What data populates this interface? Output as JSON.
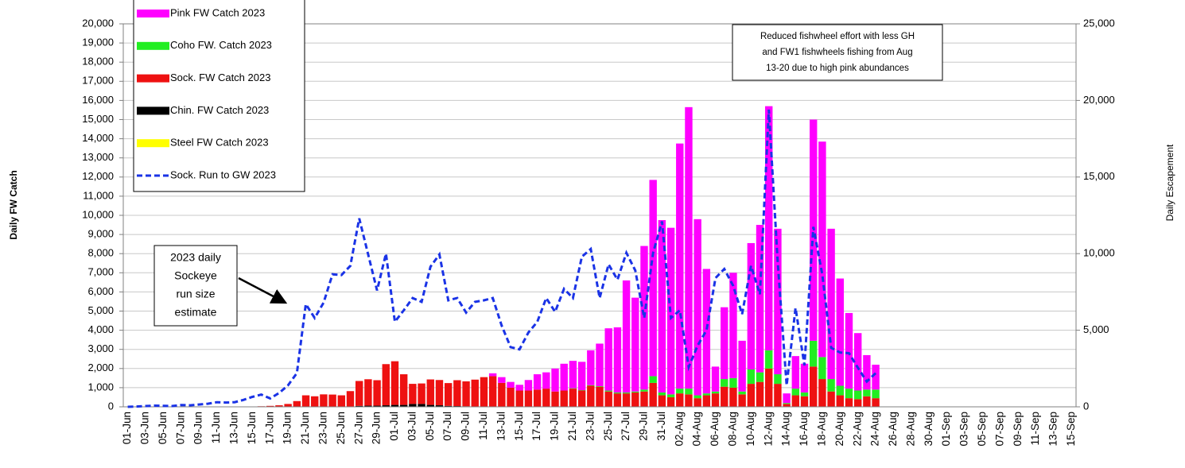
{
  "chart_data": {
    "type": "bar",
    "y_label": "Daily FW Catch",
    "y2_label": "Daily Escapement",
    "annotations": [
      {
        "lines": [
          "Reduced fishwheel effort with less GH",
          "and FW1 fishwheels  fishing from Aug",
          "13-20 due to high pink abundances"
        ]
      },
      {
        "lines": [
          "2023 daily",
          "Sockeye",
          "run size",
          "estimate"
        ]
      }
    ],
    "grid": true,
    "legend": "top-left",
    "ylim": [
      0,
      20000
    ],
    "yticks": [
      0,
      {
        "value": 1000,
        "label": "1,000"
      },
      {
        "value": 2000,
        "label": "2,000"
      },
      {
        "value": 3000,
        "label": "3,000"
      },
      {
        "value": 4000,
        "label": "4,000"
      },
      {
        "value": 5000,
        "label": "5,000"
      },
      {
        "value": 6000,
        "label": "6,000"
      },
      {
        "value": 7000,
        "label": "7,000"
      },
      {
        "value": 8000,
        "label": "8,000"
      },
      {
        "value": 9000,
        "label": "9,000"
      },
      {
        "value": 10000,
        "label": "10,000"
      },
      {
        "value": 11000,
        "label": "11,000"
      },
      {
        "value": 12000,
        "label": "12,000"
      },
      {
        "value": 13000,
        "label": "13,000"
      },
      {
        "value": 14000,
        "label": "14,000"
      },
      {
        "value": 15000,
        "label": "15,000"
      },
      {
        "value": 16000,
        "label": "16,000"
      },
      {
        "value": 17000,
        "label": "17,000"
      },
      {
        "value": 18000,
        "label": "18,000"
      },
      {
        "value": 19000,
        "label": "19,000"
      },
      {
        "value": 20000,
        "label": "20,000"
      }
    ],
    "y2lim": [
      0,
      25000
    ],
    "y2ticks": [
      0,
      {
        "value": 5000,
        "label": "5,000"
      },
      {
        "value": 10000,
        "label": "10,000"
      },
      {
        "value": 15000,
        "label": "15,000"
      },
      {
        "value": 20000,
        "label": "20,000"
      },
      {
        "value": 25000,
        "label": "25,000"
      }
    ],
    "categories": [
      "01-Jun",
      null,
      "03-Jun",
      null,
      "05-Jun",
      null,
      "07-Jun",
      null,
      "09-Jun",
      null,
      "11-Jun",
      null,
      "13-Jun",
      null,
      "15-Jun",
      null,
      "17-Jun",
      null,
      "19-Jun",
      null,
      "21-Jun",
      null,
      "23-Jun",
      null,
      "25-Jun",
      null,
      "27-Jun",
      null,
      "29-Jun",
      null,
      "01-Jul",
      null,
      "03-Jul",
      null,
      "05-Jul",
      null,
      "07-Jul",
      null,
      "09-Jul",
      null,
      "11-Jul",
      null,
      "13-Jul",
      null,
      "15-Jul",
      null,
      "17-Jul",
      null,
      "19-Jul",
      null,
      "21-Jul",
      null,
      "23-Jul",
      null,
      "25-Jul",
      null,
      "27-Jul",
      null,
      "29-Jul",
      null,
      "31-Jul",
      null,
      "02-Aug",
      null,
      "04-Aug",
      null,
      "06-Aug",
      null,
      "08-Aug",
      null,
      "10-Aug",
      null,
      "12-Aug",
      null,
      "14-Aug",
      null,
      "16-Aug",
      null,
      "18-Aug",
      null,
      "20-Aug",
      null,
      "22-Aug",
      null,
      "24-Aug",
      null,
      "26-Aug",
      null,
      "28-Aug",
      null,
      "30-Aug",
      null,
      "01-Sep",
      null,
      "03-Sep",
      null,
      "05-Sep",
      null,
      "07-Sep",
      null,
      "09-Sep",
      null,
      "11-Sep",
      null,
      "13-Sep",
      null,
      "15-Sep"
    ],
    "series": [
      {
        "name": "Pink FW Catch 2023",
        "type": "bar",
        "color": "#ff00ff",
        "values": [
          0,
          0,
          0,
          0,
          0,
          0,
          0,
          0,
          0,
          0,
          0,
          0,
          0,
          0,
          0,
          0,
          0,
          0,
          0,
          0,
          0,
          0,
          0,
          0,
          0,
          0,
          0,
          0,
          0,
          0,
          0,
          0,
          0,
          0,
          0,
          0,
          0,
          0,
          0,
          0,
          0,
          150,
          300,
          300,
          300,
          550,
          800,
          850,
          1200,
          1400,
          1430,
          1480,
          1820,
          2220,
          3250,
          3400,
          5850,
          4900,
          7500,
          10250,
          9000,
          8700,
          12800,
          14700,
          9200,
          6500,
          1300,
          3750,
          5500,
          2650,
          6600,
          7700,
          12750,
          7600,
          500,
          1700,
          1500,
          11550,
          11250,
          7850,
          5600,
          3950,
          3000,
          1800,
          1300,
          null,
          null,
          null,
          null,
          null,
          null,
          null,
          null,
          null,
          null,
          null,
          null,
          null,
          null,
          null,
          null,
          null,
          null,
          null,
          null,
          null,
          null
        ]
      },
      {
        "name": "Coho FW. Catch 2023",
        "type": "bar",
        "color": "#22ee22",
        "values": [
          0,
          0,
          0,
          0,
          0,
          0,
          0,
          0,
          0,
          0,
          0,
          0,
          0,
          0,
          0,
          0,
          0,
          0,
          0,
          0,
          0,
          0,
          0,
          0,
          0,
          0,
          0,
          0,
          0,
          0,
          0,
          0,
          0,
          0,
          0,
          0,
          0,
          0,
          0,
          0,
          0,
          0,
          0,
          0,
          0,
          0,
          0,
          0,
          0,
          0,
          20,
          20,
          30,
          30,
          50,
          50,
          50,
          50,
          100,
          350,
          150,
          150,
          250,
          300,
          150,
          100,
          100,
          400,
          500,
          150,
          750,
          500,
          950,
          500,
          50,
          350,
          200,
          1350,
          1150,
          650,
          500,
          500,
          450,
          350,
          450,
          null,
          null,
          null,
          null,
          null,
          null,
          null,
          null,
          null,
          null,
          null,
          null,
          null,
          null,
          null,
          null,
          null,
          null,
          null,
          null,
          null,
          null
        ]
      },
      {
        "name": "Sock. FW Catch 2023",
        "type": "bar",
        "color": "#ee1111",
        "values": [
          0,
          0,
          0,
          0,
          0,
          0,
          0,
          0,
          0,
          0,
          0,
          0,
          0,
          10,
          20,
          30,
          50,
          80,
          150,
          300,
          600,
          550,
          650,
          640,
          600,
          800,
          1300,
          1380,
          1330,
          2150,
          2280,
          1600,
          1050,
          1070,
          1330,
          1320,
          1190,
          1350,
          1300,
          1400,
          1550,
          1600,
          1250,
          1000,
          850,
          850,
          900,
          950,
          800,
          850,
          950,
          850,
          1100,
          1050,
          800,
          700,
          700,
          750,
          800,
          1250,
          600,
          500,
          700,
          650,
          450,
          600,
          700,
          1050,
          1000,
          650,
          1200,
          1300,
          2000,
          1200,
          150,
          600,
          550,
          2100,
          1450,
          800,
          600,
          450,
          400,
          550,
          450,
          null,
          null,
          null,
          null,
          null,
          null,
          null,
          null,
          null,
          null,
          null,
          null,
          null,
          null,
          null,
          null,
          null,
          null,
          null,
          null,
          null,
          null
        ]
      },
      {
        "name": "Chin. FW Catch 2023",
        "type": "bar",
        "color": "#000000",
        "values": [
          0,
          0,
          0,
          0,
          0,
          0,
          0,
          0,
          0,
          0,
          0,
          0,
          0,
          0,
          0,
          0,
          0,
          0,
          0,
          0,
          0,
          0,
          0,
          0,
          0,
          20,
          50,
          60,
          60,
          80,
          100,
          100,
          150,
          150,
          100,
          80,
          50,
          40,
          30,
          20,
          0,
          0,
          0,
          0,
          0,
          0,
          0,
          0,
          0,
          0,
          0,
          0,
          0,
          0,
          0,
          0,
          0,
          0,
          0,
          0,
          0,
          0,
          0,
          0,
          0,
          0,
          0,
          0,
          0,
          0,
          0,
          0,
          0,
          0,
          0,
          0,
          0,
          0,
          0,
          0,
          0,
          0,
          0,
          0,
          0,
          null,
          null,
          null,
          null,
          null,
          null,
          null,
          null,
          null,
          null,
          null,
          null,
          null,
          null,
          null,
          null,
          null,
          null,
          null,
          null,
          null,
          null
        ]
      },
      {
        "name": "Steel FW Catch 2023",
        "type": "bar",
        "color": "#ffff00",
        "values": [
          0,
          0,
          0,
          0,
          0,
          0,
          0,
          0,
          0,
          0,
          0,
          0,
          0,
          0,
          0,
          0,
          0,
          0,
          0,
          0,
          0,
          0,
          0,
          0,
          0,
          0,
          0,
          0,
          0,
          0,
          0,
          0,
          0,
          0,
          0,
          0,
          0,
          0,
          0,
          0,
          0,
          0,
          0,
          0,
          0,
          0,
          0,
          0,
          0,
          0,
          0,
          0,
          0,
          0,
          0,
          0,
          0,
          0,
          0,
          0,
          0,
          0,
          0,
          0,
          0,
          0,
          0,
          0,
          0,
          0,
          0,
          0,
          0,
          0,
          0,
          0,
          0,
          0,
          0,
          0,
          0,
          0,
          0,
          0,
          0,
          null,
          null,
          null,
          null,
          null,
          null,
          null,
          null,
          null,
          null,
          null,
          null,
          null,
          null,
          null,
          null,
          null,
          null,
          null,
          null,
          null,
          null
        ]
      },
      {
        "name": "Sock. Run to GW 2023",
        "type": "line",
        "axis": "y2",
        "color": "#1a33e6",
        "values": [
          0,
          20,
          50,
          80,
          60,
          50,
          120,
          100,
          150,
          200,
          300,
          280,
          300,
          450,
          650,
          800,
          550,
          900,
          1400,
          2200,
          6700,
          5800,
          6800,
          8650,
          8600,
          9200,
          12300,
          9950,
          7600,
          10000,
          5550,
          6300,
          7100,
          6850,
          9150,
          9950,
          6950,
          7100,
          6150,
          6850,
          6950,
          7100,
          5300,
          3900,
          3750,
          4850,
          5550,
          7100,
          6200,
          7700,
          7100,
          9800,
          10300,
          7100,
          9300,
          8300,
          10050,
          8900,
          5800,
          10050,
          12100,
          5800,
          6300,
          2600,
          4000,
          5000,
          8400,
          9000,
          7900,
          6050,
          9200,
          7350,
          19400,
          9450,
          1400,
          6450,
          2700,
          11750,
          8650,
          3850,
          3550,
          3500,
          2550,
          1650,
          2200,
          null,
          null,
          null,
          null,
          null,
          null,
          null,
          null,
          null,
          null,
          null,
          null,
          null,
          null,
          null,
          null,
          null,
          null,
          null,
          null,
          null,
          null
        ]
      }
    ]
  }
}
